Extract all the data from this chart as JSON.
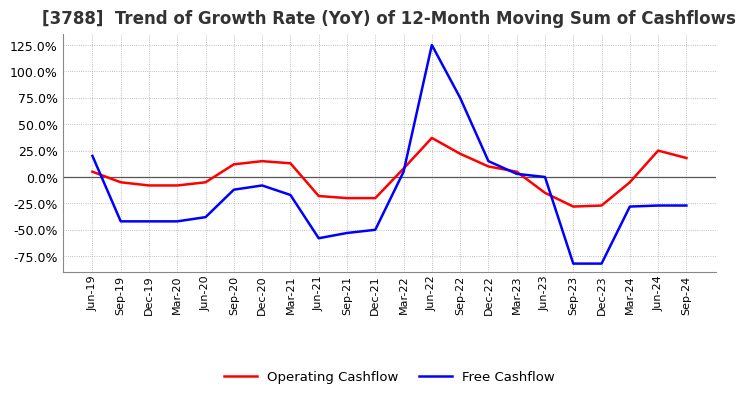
{
  "title": "[3788]  Trend of Growth Rate (YoY) of 12-Month Moving Sum of Cashflows",
  "title_fontsize": 12,
  "x_labels": [
    "Jun-19",
    "Sep-19",
    "Dec-19",
    "Mar-20",
    "Jun-20",
    "Sep-20",
    "Dec-20",
    "Mar-21",
    "Jun-21",
    "Sep-21",
    "Dec-21",
    "Mar-22",
    "Jun-22",
    "Sep-22",
    "Dec-22",
    "Mar-23",
    "Jun-23",
    "Sep-23",
    "Dec-23",
    "Mar-24",
    "Jun-24",
    "Sep-24"
  ],
  "operating_cashflow": [
    5.0,
    -5.0,
    -8.0,
    -8.0,
    -5.0,
    12.0,
    15.0,
    13.0,
    -18.0,
    -20.0,
    -20.0,
    8.0,
    37.0,
    22.0,
    10.0,
    5.0,
    -15.0,
    -28.0,
    -27.0,
    -5.0,
    25.0,
    18.0
  ],
  "free_cashflow": [
    20.0,
    -42.0,
    -42.0,
    -42.0,
    -38.0,
    -12.0,
    -8.0,
    -17.0,
    -58.0,
    -53.0,
    -50.0,
    5.0,
    125.0,
    75.0,
    15.0,
    3.0,
    0.0,
    -82.0,
    -82.0,
    -28.0,
    -27.0,
    -27.0
  ],
  "ylim": [
    -90,
    135
  ],
  "yticks": [
    -75,
    -50,
    -25,
    0,
    25,
    50,
    75,
    100,
    125
  ],
  "operating_color": "#ff0000",
  "free_color": "#0000ff",
  "grid_color": "#aaaaaa",
  "zero_line_color": "#555555",
  "background_color": "#ffffff",
  "legend_labels": [
    "Operating Cashflow",
    "Free Cashflow"
  ]
}
